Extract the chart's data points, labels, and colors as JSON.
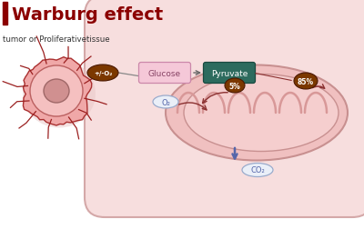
{
  "title": "Warburg effect",
  "title_color": "#8B0000",
  "title_bar_color": "#8B0000",
  "subtitle": "tumor or Proliferativetissue",
  "subtitle_color": "#333333",
  "bg_color": "#ffffff",
  "cell_fill": "#f7dede",
  "cell_edge": "#d4a8a8",
  "mito_fill": "#f0c0c0",
  "mito_edge": "#c89090",
  "mito_inner_fill": "#f5cece",
  "cristae_color": "#d89898",
  "glucose_box_fill": "#f5c8d8",
  "glucose_box_edge": "#cc88aa",
  "glucose_text": "Glucose",
  "glucose_text_color": "#884466",
  "pyruvate_box_fill": "#2d6b5e",
  "pyruvate_box_edge": "#1a4a40",
  "pyruvate_text": "Pyruvate",
  "pyruvate_text_color": "#ffffff",
  "arrow_color": "#666666",
  "dark_arrow_color": "#8B3030",
  "o2_label": "O₂",
  "co2_label": "CO₂",
  "o2_fill": "#eaeff8",
  "o2_edge": "#9aabcc",
  "co2_fill": "#eaeff8",
  "co2_edge": "#9aabcc",
  "o2_text_color": "#5566aa",
  "co2_text_color": "#5566aa",
  "pct_5": "5%",
  "pct_85": "85%",
  "pct_fill": "#7B3800",
  "pct_text_color": "#ffffff",
  "plus_o2_fill": "#7B3800",
  "plus_o2_text": "+/-O₂",
  "plus_o2_text_color": "#ffffff",
  "blue_arrow_color": "#5566aa",
  "tumor_spike_fill": "#f0a8a8",
  "tumor_spike_edge": "#aa3030",
  "tumor_body_fill": "#f5c0c0",
  "tumor_body_edge": "#bb6060",
  "tumor_nucleus_fill": "#d09090",
  "tumor_nucleus_edge": "#a06868",
  "tumor_vessel_color": "#9B2020",
  "shadow_fill": "#e8c8c8",
  "connect_line_color": "#888888"
}
